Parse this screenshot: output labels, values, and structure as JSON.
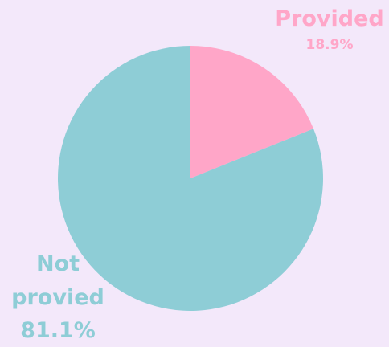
{
  "chart_data": {
    "type": "pie",
    "categories": [
      "Provided",
      "Not provied"
    ],
    "values": [
      18.9,
      81.1
    ],
    "value_labels": [
      "18.9%",
      "81.1%"
    ],
    "colors": [
      "#ffa6c8",
      "#8ecdd6"
    ]
  }
}
